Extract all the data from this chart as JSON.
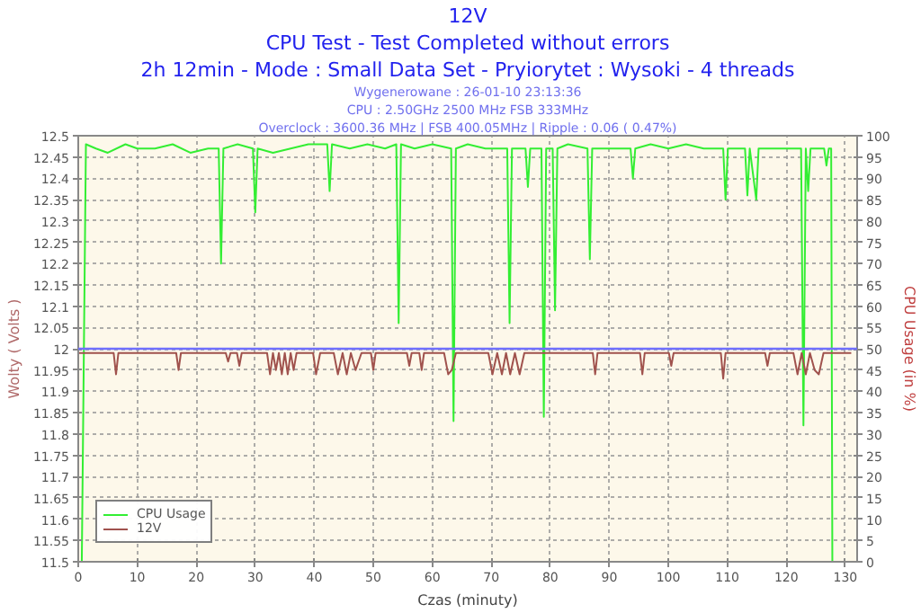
{
  "chart_data": {
    "type": "line",
    "title": "12V",
    "subtitle": [
      "CPU Test - Test Completed without errors",
      "2h 12min - Mode : Small Data Set - Pryiorytet : Wysoki - 4 threads"
    ],
    "annotations": [
      "Wygenerowane : 26-01-10 23:13:36",
      "CPU : 2.50GHz 2500 MHz FSB 333MHz",
      "Overclock : 3600.36 MHz | FSB 400.05MHz | Ripple : 0.06 ( 0.47%)"
    ],
    "xlabel": "Czas (minuty)",
    "ylabel": "Wolty ( Volts )",
    "y2label": "CPU Usage (in %)",
    "xlim": [
      0,
      132
    ],
    "xticks": [
      0,
      10,
      20,
      30,
      40,
      50,
      60,
      70,
      80,
      90,
      100,
      110,
      120,
      130
    ],
    "ylim": [
      11.5,
      12.5
    ],
    "yticks": [
      11.5,
      11.55,
      11.6,
      11.65,
      11.7,
      11.75,
      11.8,
      11.85,
      11.9,
      11.95,
      12,
      12.05,
      12.1,
      12.15,
      12.2,
      12.25,
      12.3,
      12.35,
      12.4,
      12.45,
      12.5
    ],
    "y2lim": [
      0,
      100
    ],
    "y2ticks": [
      0,
      5,
      10,
      15,
      20,
      25,
      30,
      35,
      40,
      45,
      50,
      55,
      60,
      65,
      70,
      75,
      80,
      85,
      90,
      95,
      100
    ],
    "grid": true,
    "legend": "bottom left",
    "ref_lines": [
      {
        "axis": "y",
        "value": 12,
        "color": "#7070ff"
      }
    ],
    "series": [
      {
        "name": "CPU Usage",
        "color": "#33ee33",
        "axis": "y2",
        "x": [
          0,
          0.6,
          1.3,
          3,
          5,
          8,
          10,
          13,
          16,
          19,
          22,
          23.8,
          24.2,
          24.6,
          27,
          29.6,
          30,
          30.4,
          33,
          36,
          39,
          42.2,
          42.6,
          43,
          46,
          49,
          52,
          53.9,
          54.3,
          54.7,
          57,
          60,
          63.2,
          63.6,
          64,
          66,
          69,
          72.7,
          73.1,
          73.5,
          75.8,
          76.2,
          76.6,
          78.5,
          78.9,
          79.3,
          80.4,
          80.8,
          81.2,
          83,
          86.3,
          86.7,
          87.1,
          90,
          93.6,
          94,
          94.4,
          97,
          100,
          103,
          106,
          109.3,
          109.7,
          110.1,
          113,
          113.4,
          113.8,
          114.9,
          115.3,
          118,
          122.5,
          122.9,
          123.3,
          123.7,
          124.1,
          126.4,
          126.8,
          127.2,
          127.6,
          127.8
        ],
        "values": [
          0,
          0,
          98,
          97,
          96,
          98,
          97,
          97,
          98,
          96,
          97,
          97,
          70,
          97,
          98,
          97,
          82,
          97,
          96,
          97,
          98,
          98,
          87,
          98,
          97,
          98,
          97,
          98,
          56,
          98,
          97,
          98,
          97,
          33,
          97,
          98,
          97,
          97,
          56,
          97,
          97,
          88,
          97,
          97,
          34,
          97,
          97,
          59,
          97,
          98,
          97,
          71,
          97,
          97,
          97,
          90,
          97,
          98,
          97,
          98,
          97,
          97,
          85,
          97,
          97,
          86,
          97,
          85,
          97,
          97,
          97,
          32,
          97,
          87,
          97,
          97,
          93,
          97,
          97,
          0
        ]
      },
      {
        "name": "12V",
        "color": "#a0524d",
        "x": [
          0,
          6.0,
          6.4,
          6.8,
          16.6,
          17,
          17.4,
          25,
          25.4,
          25.8,
          26.9,
          27.3,
          27.7,
          32,
          32.5,
          33,
          33.5,
          34,
          34.5,
          35,
          35.5,
          36,
          36.5,
          37,
          39.8,
          40.3,
          41,
          43.3,
          44,
          44.8,
          45.5,
          46.2,
          47,
          48,
          49.6,
          50,
          50.4,
          55.7,
          56.1,
          56.5,
          57.8,
          58.2,
          58.6,
          62,
          62.7,
          63.3,
          64,
          69.5,
          70.2,
          71,
          71.8,
          72.5,
          73.2,
          74,
          74.8,
          75.6,
          87.2,
          87.6,
          88,
          95.2,
          95.6,
          96,
          100.1,
          100.5,
          100.9,
          108.9,
          109.3,
          109.7,
          116.4,
          116.8,
          117.2,
          121.2,
          121.9,
          122.6,
          123.3,
          124,
          124.8,
          125.5,
          126.3,
          131
        ],
        "values": [
          11.99,
          11.99,
          11.94,
          11.99,
          11.99,
          11.95,
          11.99,
          11.99,
          11.97,
          11.99,
          11.99,
          11.96,
          11.99,
          11.99,
          11.94,
          11.99,
          11.95,
          11.99,
          11.94,
          11.99,
          11.94,
          11.99,
          11.95,
          11.99,
          11.99,
          11.94,
          11.99,
          11.99,
          11.94,
          11.99,
          11.94,
          11.99,
          11.95,
          11.99,
          11.99,
          11.95,
          11.99,
          11.99,
          11.96,
          11.99,
          11.99,
          11.95,
          11.99,
          11.99,
          11.94,
          11.95,
          11.99,
          11.99,
          11.94,
          11.99,
          11.94,
          11.99,
          11.94,
          11.99,
          11.94,
          11.99,
          11.99,
          11.94,
          11.99,
          11.99,
          11.94,
          11.99,
          11.99,
          11.96,
          11.99,
          11.99,
          11.93,
          11.99,
          11.99,
          11.96,
          11.99,
          11.99,
          11.94,
          11.99,
          11.94,
          11.99,
          11.95,
          11.94,
          11.99,
          11.99
        ]
      }
    ]
  }
}
